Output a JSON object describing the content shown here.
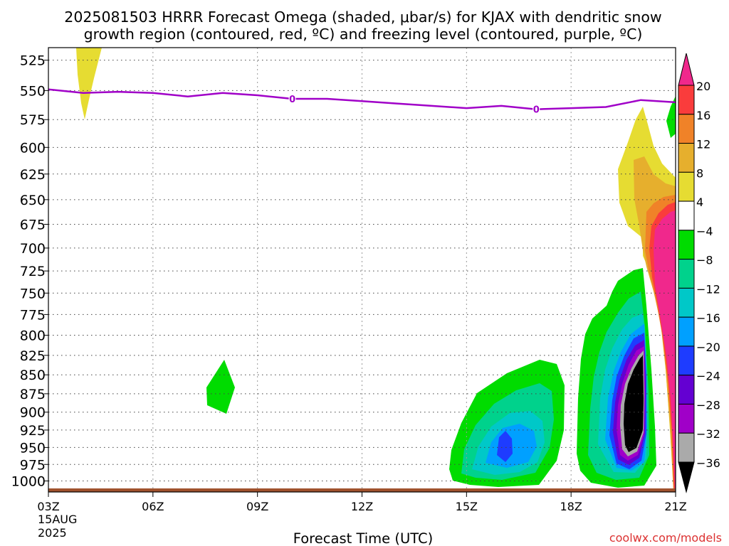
{
  "chart_data": {
    "type": "heatmap",
    "title": "2025081503 HRRR Forecast Omega (shaded, μbar/s) for KJAX with dendritic snow",
    "subtitle": "growth region (contoured, red, ºC) and freezing level (contoured, purple, ºC)",
    "xlabel": "Forecast Time (UTC)",
    "x_ticks": [
      "03Z",
      "06Z",
      "09Z",
      "12Z",
      "15Z",
      "18Z",
      "21Z"
    ],
    "x_first_tick_extra": [
      "15AUG",
      "2025"
    ],
    "x_range_hours": [
      3,
      21
    ],
    "y_ticks": [
      525,
      550,
      575,
      600,
      625,
      650,
      675,
      700,
      725,
      750,
      775,
      800,
      825,
      850,
      875,
      900,
      925,
      950,
      975,
      1000
    ],
    "y_range_hpa": [
      515,
      1017
    ],
    "y_scale": "log",
    "grid": true,
    "colorbar": {
      "labels": [
        "20",
        "16",
        "12",
        "8",
        "4",
        "−4",
        "−8",
        "−12",
        "−16",
        "−20",
        "−24",
        "−28",
        "−32",
        "−36"
      ],
      "bins": [
        {
          "range": "> 20",
          "color": "#f0288c"
        },
        {
          "range": "16 to 20",
          "color": "#fa3c3c"
        },
        {
          "range": "12 to 16",
          "color": "#f08228"
        },
        {
          "range": "8 to 12",
          "color": "#e6af2d"
        },
        {
          "range": "4 to 8",
          "color": "#e6dc32"
        },
        {
          "range": "-4 to 4",
          "color": "#ffffff"
        },
        {
          "range": "-8 to -4",
          "color": "#00dc00"
        },
        {
          "range": "-12 to -8",
          "color": "#00d28c"
        },
        {
          "range": "-16 to -12",
          "color": "#00c8c8"
        },
        {
          "range": "-20 to -16",
          "color": "#00a0ff"
        },
        {
          "range": "-24 to -20",
          "color": "#1e3cff"
        },
        {
          "range": "-28 to -24",
          "color": "#6400d2"
        },
        {
          "range": "-32 to -28",
          "color": "#a000c8"
        },
        {
          "range": "-36 to -32",
          "color": "#aaaaaa"
        },
        {
          "range": "< -36",
          "color": "#000000"
        }
      ]
    },
    "freezing_level": {
      "label": "0",
      "color": "#a000c8",
      "hours": [
        3,
        4,
        5,
        6,
        7,
        8,
        9,
        10,
        11,
        12,
        13,
        14,
        15,
        16,
        17,
        18,
        19,
        20,
        21
      ],
      "pressure_hpa": [
        549,
        552,
        551,
        552,
        555,
        552,
        554,
        557,
        557,
        559,
        561,
        563,
        565,
        563,
        566,
        565,
        564,
        558,
        560
      ]
    },
    "freezing_label_hours": [
      10,
      17
    ],
    "surface_color": "#a0522d",
    "credit": "coolwx.com/models",
    "credit_color": "#dc3232"
  }
}
